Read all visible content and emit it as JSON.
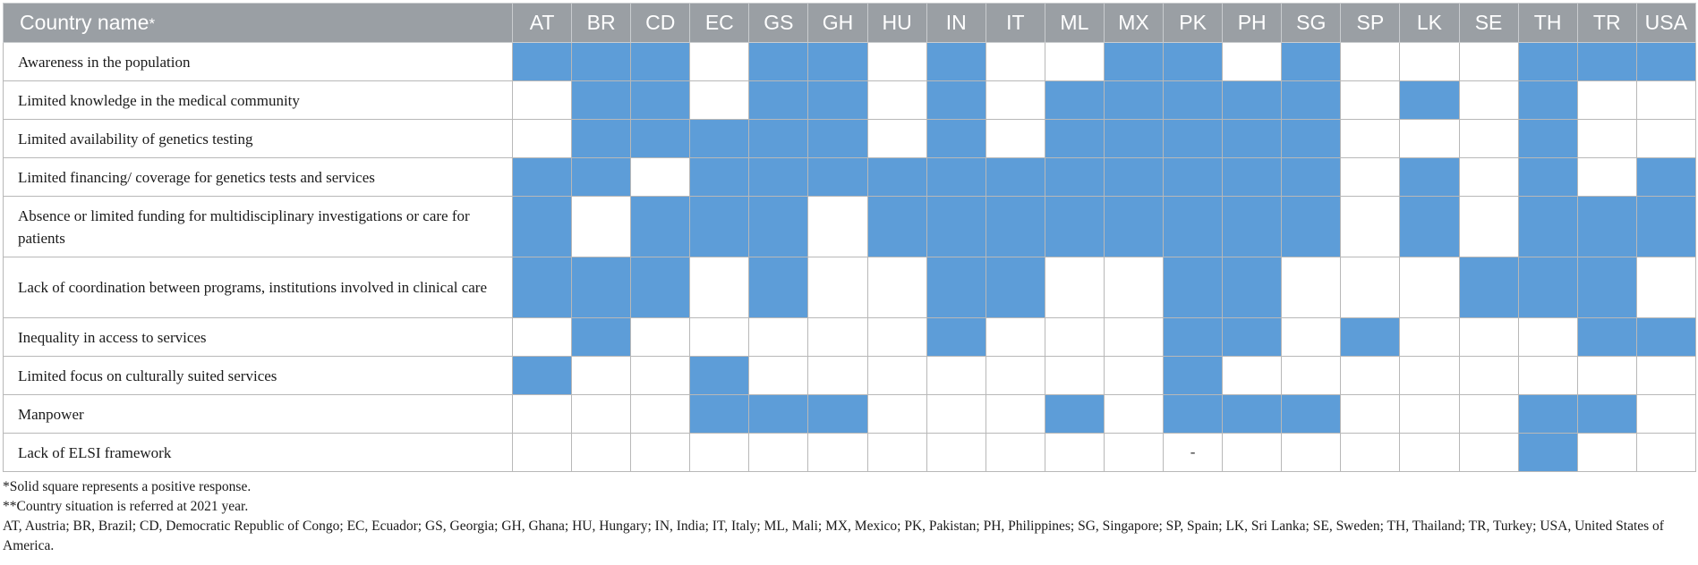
{
  "header": {
    "first_col": "Country name",
    "star": "*",
    "countries": [
      "AT",
      "BR",
      "CD",
      "EC",
      "GS",
      "GH",
      "HU",
      "IN",
      "IT",
      "ML",
      "MX",
      "PK",
      "PH",
      "SG",
      "SP",
      "LK",
      "SE",
      "TH",
      "TR",
      "USA"
    ]
  },
  "rows": [
    {
      "label": "Awareness in the population",
      "tall": false,
      "cells": [
        1,
        1,
        1,
        0,
        1,
        1,
        0,
        1,
        0,
        0,
        1,
        1,
        0,
        1,
        0,
        0,
        0,
        1,
        1,
        1
      ]
    },
    {
      "label": "Limited knowledge in the medical community",
      "tall": false,
      "cells": [
        0,
        1,
        1,
        0,
        1,
        1,
        0,
        1,
        0,
        1,
        1,
        1,
        1,
        1,
        0,
        1,
        0,
        1,
        0,
        0
      ]
    },
    {
      "label": "Limited availability of genetics testing",
      "tall": false,
      "cells": [
        0,
        1,
        1,
        1,
        1,
        1,
        0,
        1,
        0,
        1,
        1,
        1,
        1,
        1,
        0,
        0,
        0,
        1,
        0,
        0
      ]
    },
    {
      "label": "Limited financing/ coverage for genetics tests and services",
      "tall": false,
      "cells": [
        1,
        1,
        0,
        1,
        1,
        1,
        1,
        1,
        1,
        1,
        1,
        1,
        1,
        1,
        0,
        1,
        0,
        1,
        0,
        1
      ]
    },
    {
      "label": "Absence or limited funding for multidisciplinary investigations or care for patients",
      "tall": true,
      "cells": [
        1,
        0,
        1,
        1,
        1,
        0,
        1,
        1,
        1,
        1,
        1,
        1,
        1,
        1,
        0,
        1,
        0,
        1,
        1,
        1
      ]
    },
    {
      "label": "Lack of coordination between programs, institutions involved in clinical care",
      "tall": true,
      "cells": [
        1,
        1,
        1,
        0,
        1,
        0,
        0,
        1,
        1,
        0,
        0,
        1,
        1,
        0,
        0,
        0,
        1,
        1,
        1,
        0
      ]
    },
    {
      "label": "Inequality in access to services",
      "tall": false,
      "cells": [
        0,
        1,
        0,
        0,
        0,
        0,
        0,
        1,
        0,
        0,
        0,
        1,
        1,
        0,
        1,
        0,
        0,
        0,
        1,
        1
      ]
    },
    {
      "label": "Limited focus on culturally suited services",
      "tall": false,
      "cells": [
        1,
        0,
        0,
        1,
        0,
        0,
        0,
        0,
        0,
        0,
        0,
        1,
        0,
        0,
        0,
        0,
        0,
        0,
        0,
        0
      ]
    },
    {
      "label": "Manpower",
      "tall": false,
      "cells": [
        0,
        0,
        0,
        1,
        1,
        1,
        0,
        0,
        0,
        1,
        0,
        1,
        1,
        1,
        0,
        0,
        0,
        1,
        1,
        0
      ]
    },
    {
      "label": "Lack of ELSI framework",
      "tall": false,
      "cells": [
        0,
        0,
        0,
        0,
        0,
        0,
        0,
        0,
        0,
        0,
        0,
        "-",
        0,
        0,
        0,
        0,
        0,
        1,
        0,
        0
      ]
    }
  ],
  "notes": {
    "line1": "*Solid square represents a positive response.",
    "line2": "**Country situation is referred at 2021 year.",
    "line3": "AT, Austria; BR, Brazil; CD, Democratic Republic of Congo; EC, Ecuador; GS, Georgia; GH, Ghana; HU, Hungary; IN, India; IT, Italy; ML, Mali; MX, Mexico; PK, Pakistan; PH, Philippines; SG, Singapore; SP, Spain; LK, Sri Lanka; SE, Sweden; TH, Thailand; TR, Turkey; USA, United States of America."
  },
  "colors": {
    "positive": "#5d9dd8",
    "header_bg": "#9a9fa4"
  }
}
